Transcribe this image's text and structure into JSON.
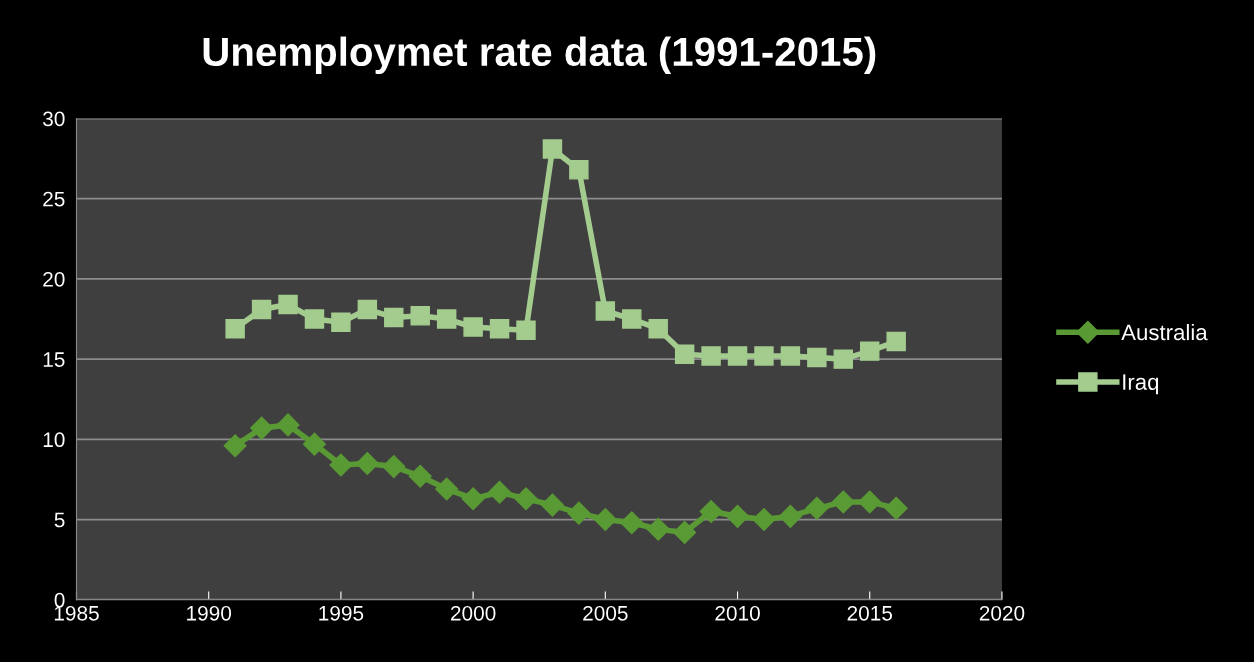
{
  "chart_data": {
    "type": "line",
    "title": "Unemploymet rate data (1991-2015)",
    "x": [
      1991,
      1992,
      1993,
      1994,
      1995,
      1996,
      1997,
      1998,
      1999,
      2000,
      2001,
      2002,
      2003,
      2004,
      2005,
      2006,
      2007,
      2008,
      2009,
      2010,
      2011,
      2012,
      2013,
      2014,
      2015,
      2016
    ],
    "series": [
      {
        "name": "Australia",
        "color": "#5a9a35",
        "marker": "diamond",
        "values": [
          9.6,
          10.7,
          10.9,
          9.7,
          8.4,
          8.5,
          8.3,
          7.7,
          6.9,
          6.3,
          6.7,
          6.3,
          5.9,
          5.4,
          5.0,
          4.8,
          4.4,
          4.2,
          5.5,
          5.2,
          5.0,
          5.2,
          5.7,
          6.1,
          6.1,
          5.7
        ]
      },
      {
        "name": "Iraq",
        "color": "#a3cc8e",
        "marker": "square",
        "values": [
          16.9,
          18.1,
          18.4,
          17.5,
          17.3,
          18.1,
          17.6,
          17.7,
          17.5,
          17.0,
          16.9,
          16.8,
          28.1,
          26.8,
          18.0,
          17.5,
          16.9,
          15.3,
          15.2,
          15.2,
          15.2,
          15.2,
          15.1,
          15.0,
          15.5,
          16.1
        ]
      }
    ],
    "xlim": [
      1985,
      2020
    ],
    "xticks": [
      1985,
      1990,
      1995,
      2000,
      2005,
      2010,
      2015,
      2020
    ],
    "ylim": [
      0,
      30
    ],
    "yticks": [
      0,
      5,
      10,
      15,
      20,
      25,
      30
    ],
    "grid": "y",
    "legend": "right"
  }
}
